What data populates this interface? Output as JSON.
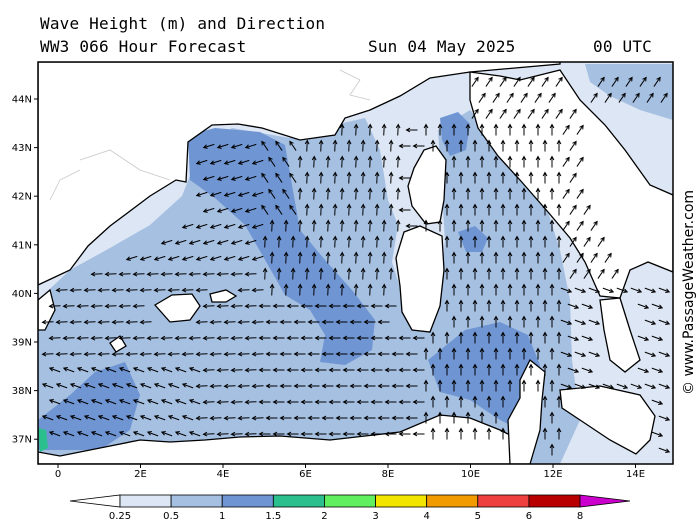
{
  "header": {
    "title": "Wave Height (m) and Direction",
    "model": "WW3 066 Hour Forecast",
    "date": "Sun 04 May 2025",
    "time": "00 UTC"
  },
  "map": {
    "region": "Western Mediterranean",
    "lat_labels": [
      "44N",
      "43N",
      "42N",
      "41N",
      "40N",
      "39N",
      "38N",
      "37N"
    ],
    "lon_labels": [
      "0",
      "2E",
      "4E",
      "6E",
      "8E",
      "10E",
      "12E",
      "14E"
    ]
  },
  "colorbar": {
    "labels": [
      "0.25",
      "0.5",
      "1",
      "1.5",
      "2",
      "3",
      "4",
      "5",
      "6",
      "8"
    ],
    "colors": [
      "#ffffff",
      "#dde6f4",
      "#a6c0e2",
      "#6f95d3",
      "#2bbf8e",
      "#5fef5f",
      "#f2e600",
      "#f29b00",
      "#ef4040",
      "#b80000",
      "#cc00cc"
    ]
  },
  "credit": "© www.PassageWeather.com"
}
